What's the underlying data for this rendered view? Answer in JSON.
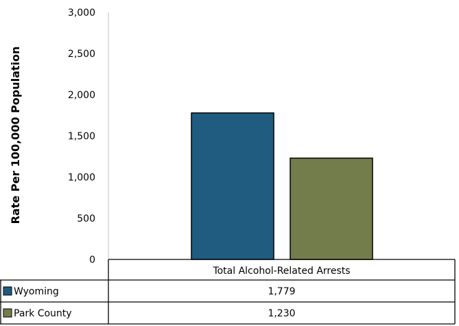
{
  "chart_data": {
    "type": "bar",
    "title": "",
    "xlabel": "",
    "ylabel": "Rate Per 100,000 Population",
    "ylim": [
      0,
      3000
    ],
    "yticks": [
      0,
      500,
      1000,
      1500,
      2000,
      2500,
      3000
    ],
    "ytick_labels": [
      "0",
      "500",
      "1,000",
      "1,500",
      "2,000",
      "2,500",
      "3,000"
    ],
    "categories": [
      "Total Alcohol-Related Arrests"
    ],
    "series": [
      {
        "name": "Wyoming",
        "color": "#1f5c7f",
        "values": [
          1779
        ],
        "value_labels": [
          "1,779"
        ]
      },
      {
        "name": "Park County",
        "color": "#737d4b",
        "values": [
          1230
        ],
        "value_labels": [
          "1,230"
        ]
      }
    ],
    "grid": false,
    "legend": "data-table-below"
  }
}
